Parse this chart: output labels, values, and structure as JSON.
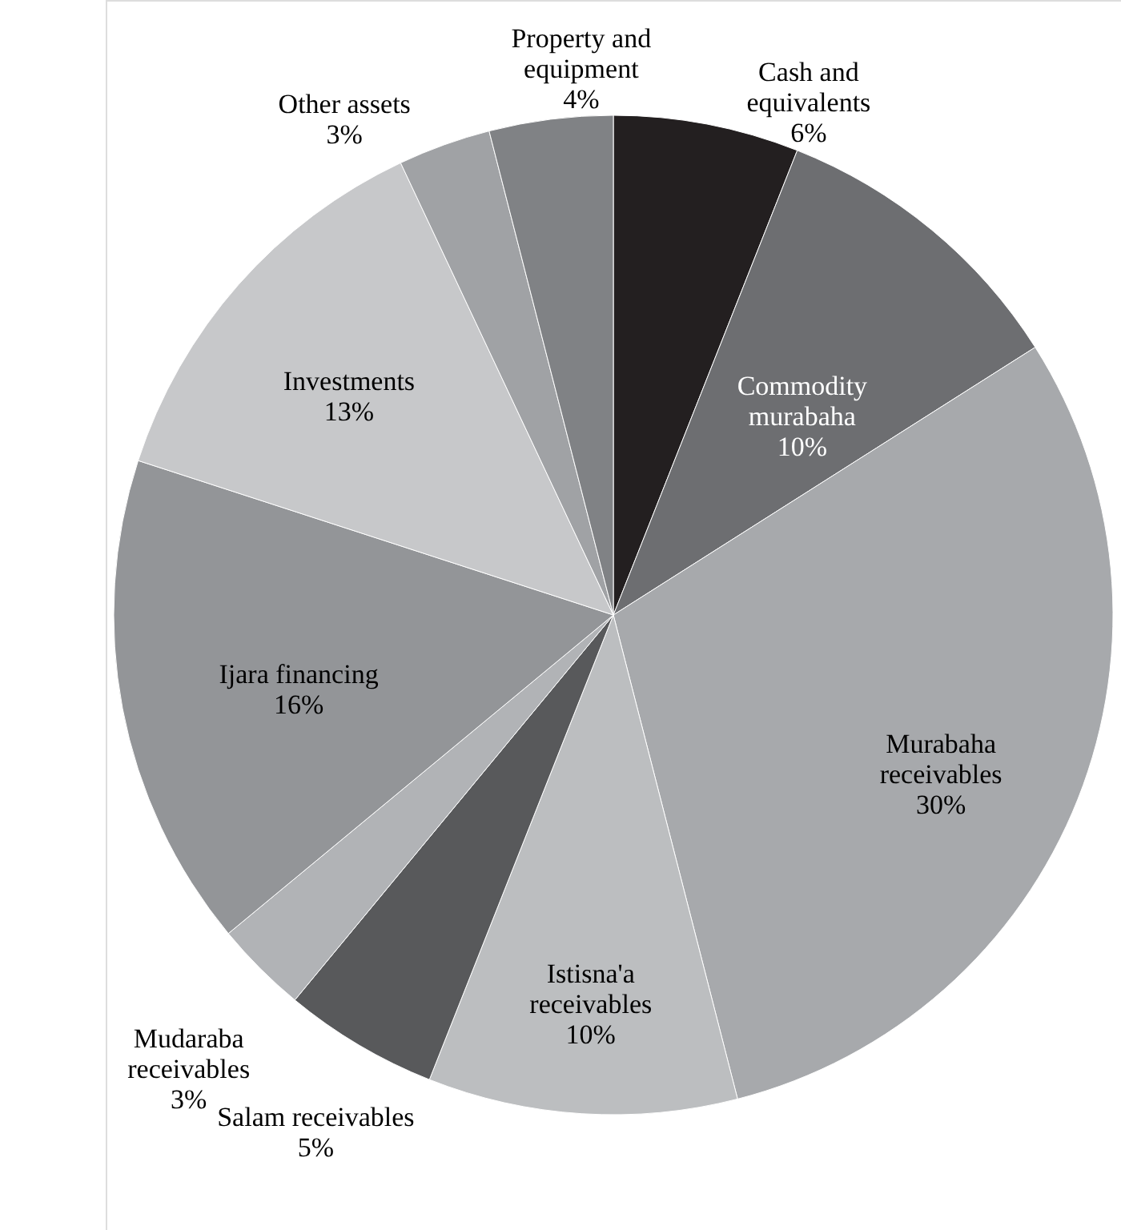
{
  "chart_data": {
    "type": "pie",
    "categories": [
      "Cash and equivalents",
      "Commodity murabaha",
      "Murabaha receivables",
      "Istisna'a receivables",
      "Salam receivables",
      "Mudaraba receivables",
      "Ijara financing",
      "Investments",
      "Other assets",
      "Property and equipment"
    ],
    "values": [
      6,
      10,
      30,
      10,
      5,
      3,
      16,
      13,
      3,
      4
    ],
    "value_labels": [
      "6%",
      "10%",
      "30%",
      "10%",
      "5%",
      "3%",
      "16%",
      "13%",
      "3%",
      "4%"
    ],
    "colors": [
      "#231f20",
      "#6d6e71",
      "#a7a9ac",
      "#bcbec0",
      "#58595b",
      "#b1b3b6",
      "#939598",
      "#c7c8ca",
      "#a0a2a5",
      "#808285"
    ]
  }
}
